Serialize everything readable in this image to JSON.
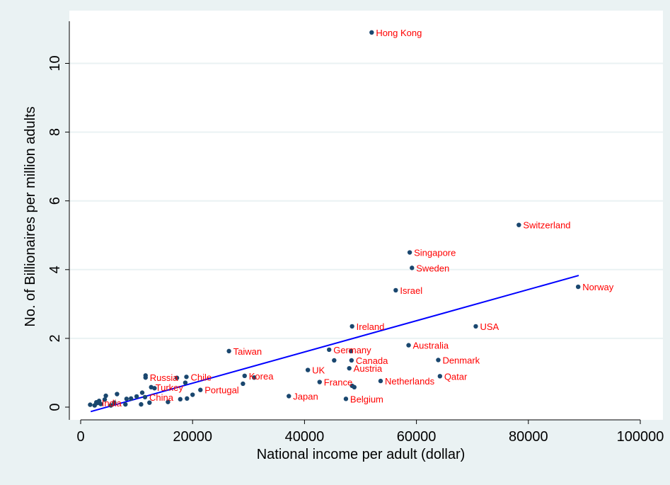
{
  "chart_data": {
    "type": "scatter",
    "title": "",
    "xlabel": "National income per adult (dollar)",
    "ylabel": "No. of Billionaires per million adults",
    "xlim": [
      0,
      100000
    ],
    "ylim": [
      -0.6,
      11.3
    ],
    "xticks": [
      0,
      20000,
      40000,
      60000,
      80000,
      100000
    ],
    "xtick_labels": [
      "0",
      "20000",
      "40000",
      "60000",
      "80000",
      "100000"
    ],
    "yticks": [
      0,
      2,
      4,
      6,
      8,
      10
    ],
    "ytick_labels": [
      "0",
      "2",
      "4",
      "6",
      "8",
      "10"
    ],
    "grid": true,
    "legend": "none",
    "colors": {
      "plot_background": "#ffffff",
      "outer_background": "#eaf2f3",
      "gridline": "#eaf2f3",
      "point": "#1a476f",
      "point_label": "#ff0000",
      "fit_line": "#0000ff",
      "axis": "#000000"
    },
    "labeled_points": [
      {
        "label": "Hong Kong",
        "x": 52000,
        "y": 10.9
      },
      {
        "label": "Switzerland",
        "x": 78300,
        "y": 5.3
      },
      {
        "label": "Singapore",
        "x": 58800,
        "y": 4.5
      },
      {
        "label": "Sweden",
        "x": 59200,
        "y": 4.05
      },
      {
        "label": "Israel",
        "x": 56300,
        "y": 3.4
      },
      {
        "label": "Norway",
        "x": 88900,
        "y": 3.5
      },
      {
        "label": "Ireland",
        "x": 48500,
        "y": 2.35
      },
      {
        "label": "USA",
        "x": 70600,
        "y": 2.35
      },
      {
        "label": "Australia",
        "x": 58600,
        "y": 1.8
      },
      {
        "label": "Taiwan",
        "x": 26500,
        "y": 1.63
      },
      {
        "label": "Germany",
        "x": 44400,
        "y": 1.67
      },
      {
        "label": "Canada",
        "x": 48400,
        "y": 1.36
      },
      {
        "label": "Denmark",
        "x": 63900,
        "y": 1.37
      },
      {
        "label": "Austria",
        "x": 48000,
        "y": 1.13
      },
      {
        "label": "UK",
        "x": 40600,
        "y": 1.08
      },
      {
        "label": "Qatar",
        "x": 64200,
        "y": 0.9
      },
      {
        "label": "Korea",
        "x": 29300,
        "y": 0.91
      },
      {
        "label": "Chile",
        "x": 18900,
        "y": 0.88
      },
      {
        "label": "Russia",
        "x": 11600,
        "y": 0.86
      },
      {
        "label": "France",
        "x": 42700,
        "y": 0.73
      },
      {
        "label": "Netherlands",
        "x": 53600,
        "y": 0.76
      },
      {
        "label": "Turkey",
        "x": 12600,
        "y": 0.58
      },
      {
        "label": "Portugal",
        "x": 21400,
        "y": 0.5
      },
      {
        "label": "Japan",
        "x": 37200,
        "y": 0.32
      },
      {
        "label": "China",
        "x": 11500,
        "y": 0.29
      },
      {
        "label": "Belgium",
        "x": 47400,
        "y": 0.24
      },
      {
        "label": "India",
        "x": 3000,
        "y": 0.12
      }
    ],
    "unlabeled_points": [
      {
        "x": 1700,
        "y": 0.07
      },
      {
        "x": 2500,
        "y": 0.05
      },
      {
        "x": 2800,
        "y": 0.14
      },
      {
        "x": 3300,
        "y": 0.18
      },
      {
        "x": 3600,
        "y": 0.09
      },
      {
        "x": 4300,
        "y": 0.22
      },
      {
        "x": 4500,
        "y": 0.33
      },
      {
        "x": 5400,
        "y": 0.05
      },
      {
        "x": 6000,
        "y": 0.13
      },
      {
        "x": 6500,
        "y": 0.38
      },
      {
        "x": 8000,
        "y": 0.08
      },
      {
        "x": 8200,
        "y": 0.24
      },
      {
        "x": 9000,
        "y": 0.25
      },
      {
        "x": 10000,
        "y": 0.31
      },
      {
        "x": 10800,
        "y": 0.08
      },
      {
        "x": 11000,
        "y": 0.42
      },
      {
        "x": 11600,
        "y": 0.92
      },
      {
        "x": 12300,
        "y": 0.13
      },
      {
        "x": 13200,
        "y": 0.55
      },
      {
        "x": 15600,
        "y": 0.15
      },
      {
        "x": 17200,
        "y": 0.85
      },
      {
        "x": 17800,
        "y": 0.23
      },
      {
        "x": 18700,
        "y": 0.71
      },
      {
        "x": 19000,
        "y": 0.25
      },
      {
        "x": 20000,
        "y": 0.36
      },
      {
        "x": 29000,
        "y": 0.68
      },
      {
        "x": 31000,
        "y": 0.86
      },
      {
        "x": 45300,
        "y": 1.36
      },
      {
        "x": 48300,
        "y": 1.63
      },
      {
        "x": 48500,
        "y": 0.62
      },
      {
        "x": 48900,
        "y": 0.58
      }
    ],
    "fit_line": {
      "x": [
        1800,
        89000
      ],
      "y": [
        -0.13,
        3.83
      ]
    }
  }
}
